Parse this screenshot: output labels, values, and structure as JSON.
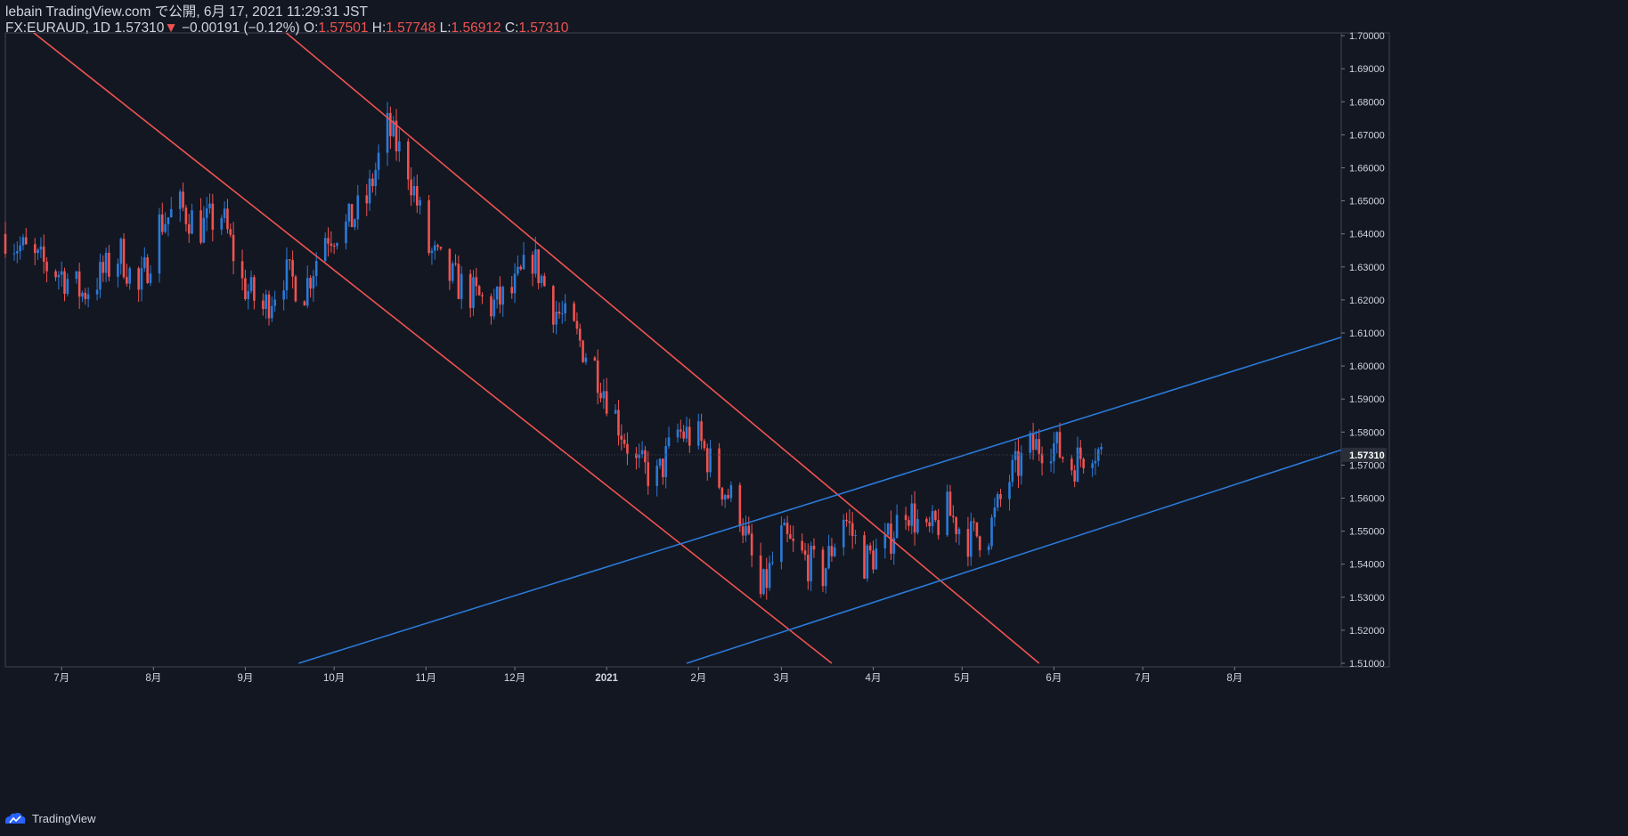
{
  "header": {
    "publish_line": "lebain TradingView.com で公開, 6月 17, 2021 11:29:31 JST",
    "symbol": "FX:EURAUD, 1D",
    "last": "1.57310",
    "arrow": "▼",
    "change": "−0.00191 (−0.12%)",
    "o_label": "O:",
    "o_value": "1.57501",
    "h_label": "H:",
    "h_value": "1.57748",
    "l_label": "L:",
    "l_value": "1.56912",
    "c_label": "C:",
    "c_value": "1.57310"
  },
  "footer": {
    "brand": "TradingView",
    "logo_icon": "tradingview-logo-icon"
  },
  "colors": {
    "background": "#131722",
    "up": "#2a7ad8",
    "down": "#ef5350",
    "text": "#d1d4dc",
    "grid": "#2a2e39"
  },
  "chart_data": {
    "type": "candlestick",
    "symbol": "FX:EURAUD",
    "interval": "1D",
    "x_ticks": [
      "7月",
      "8月",
      "9月",
      "10月",
      "11月",
      "12月",
      "2021",
      "2月",
      "3月",
      "4月",
      "5月",
      "6月",
      "7月",
      "8月"
    ],
    "y_ticks": [
      "1.51000",
      "1.52000",
      "1.53000",
      "1.54000",
      "1.55000",
      "1.56000",
      "1.57000",
      "1.58000",
      "1.59000",
      "1.60000",
      "1.61000",
      "1.62000",
      "1.63000",
      "1.64000",
      "1.65000",
      "1.66000",
      "1.67000",
      "1.68000",
      "1.69000",
      "1.70000"
    ],
    "ylim": [
      1.51,
      1.7
    ],
    "xlim": [
      "2020-06-12",
      "2021-09-06"
    ],
    "last_price_label": "1.57310",
    "last_price": 1.5731,
    "closes": [
      [
        "2020-06-12",
        1.64
      ],
      [
        "2020-06-22",
        1.632
      ],
      [
        "2020-07-01",
        1.628
      ],
      [
        "2020-07-08",
        1.622
      ],
      [
        "2020-07-15",
        1.628
      ],
      [
        "2020-07-21",
        1.634
      ],
      [
        "2020-07-27",
        1.622
      ],
      [
        "2020-08-03",
        1.643
      ],
      [
        "2020-08-10",
        1.648
      ],
      [
        "2020-08-17",
        1.642
      ],
      [
        "2020-08-24",
        1.646
      ],
      [
        "2020-08-31",
        1.625
      ],
      [
        "2020-09-07",
        1.617
      ],
      [
        "2020-09-14",
        1.628
      ],
      [
        "2020-09-21",
        1.623
      ],
      [
        "2020-09-28",
        1.64
      ],
      [
        "2020-10-05",
        1.642
      ],
      [
        "2020-10-12",
        1.65
      ],
      [
        "2020-10-19",
        1.672
      ],
      [
        "2020-10-26",
        1.66
      ],
      [
        "2020-11-02",
        1.635
      ],
      [
        "2020-11-09",
        1.627
      ],
      [
        "2020-11-16",
        1.622
      ],
      [
        "2020-11-23",
        1.618
      ],
      [
        "2020-11-30",
        1.622
      ],
      [
        "2020-12-07",
        1.633
      ],
      [
        "2020-12-14",
        1.618
      ],
      [
        "2020-12-21",
        1.61
      ],
      [
        "2020-12-28",
        1.6
      ],
      [
        "2021-01-04",
        1.585
      ],
      [
        "2021-01-11",
        1.57
      ],
      [
        "2021-01-18",
        1.566
      ],
      [
        "2021-01-25",
        1.58
      ],
      [
        "2021-02-01",
        1.578
      ],
      [
        "2021-02-08",
        1.565
      ],
      [
        "2021-02-15",
        1.556
      ],
      [
        "2021-02-22",
        1.53
      ],
      [
        "2021-03-01",
        1.548
      ],
      [
        "2021-03-08",
        1.542
      ],
      [
        "2021-03-15",
        1.537
      ],
      [
        "2021-03-22",
        1.555
      ],
      [
        "2021-03-29",
        1.541
      ],
      [
        "2021-04-05",
        1.545
      ],
      [
        "2021-04-12",
        1.558
      ],
      [
        "2021-04-19",
        1.548
      ],
      [
        "2021-04-26",
        1.556
      ],
      [
        "2021-05-03",
        1.548
      ],
      [
        "2021-05-10",
        1.55
      ],
      [
        "2021-05-17",
        1.566
      ],
      [
        "2021-05-24",
        1.575
      ],
      [
        "2021-05-31",
        1.577
      ],
      [
        "2021-06-07",
        1.57
      ],
      [
        "2021-06-14",
        1.576
      ],
      [
        "2021-06-17",
        1.5731
      ]
    ],
    "trendlines": [
      {
        "name": "desc-channel-upper",
        "color": "#ef5350",
        "p1": [
          "2020-09-08",
          1.706
        ],
        "p2": [
          "2021-05-27",
          1.51
        ]
      },
      {
        "name": "desc-channel-lower",
        "color": "#ef5350",
        "p1": [
          "2020-06-20",
          1.702
        ],
        "p2": [
          "2021-03-18",
          1.51
        ]
      },
      {
        "name": "asc-channel-upper",
        "color": "#2a7ad8",
        "p1": [
          "2020-09-19",
          1.51
        ],
        "p2": [
          "2021-09-06",
          1.6087
        ]
      },
      {
        "name": "asc-channel-lower",
        "color": "#2a7ad8",
        "p1": [
          "2021-01-28",
          1.51
        ],
        "p2": [
          "2021-09-06",
          1.5746
        ]
      }
    ]
  }
}
